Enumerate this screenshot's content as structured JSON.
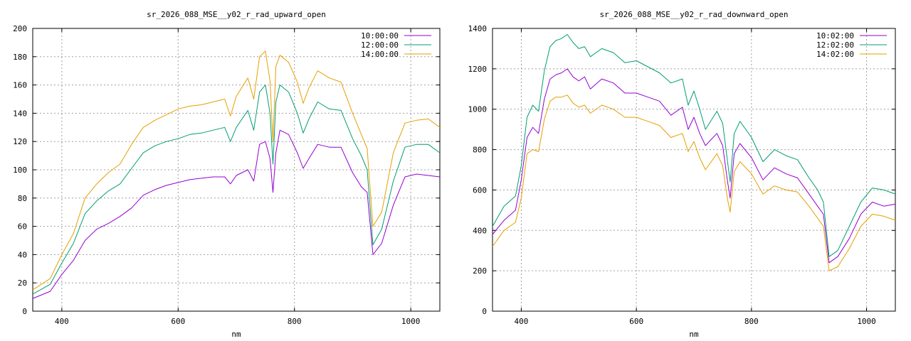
{
  "chart_data": [
    {
      "type": "line",
      "title": "sr_2026_088_MSE__y02_r_rad_upward_open",
      "xlabel": "nm",
      "ylabel": "",
      "xlim": [
        350,
        1050
      ],
      "ylim": [
        0,
        200
      ],
      "xticks": [
        400,
        600,
        800,
        1000
      ],
      "yticks": [
        0,
        20,
        40,
        60,
        80,
        100,
        120,
        140,
        160,
        180,
        200
      ],
      "grid": true,
      "legend_position": "top-right",
      "x": [
        350,
        380,
        400,
        420,
        440,
        460,
        480,
        500,
        520,
        540,
        560,
        580,
        600,
        620,
        640,
        660,
        680,
        690,
        700,
        720,
        730,
        740,
        750,
        758,
        763,
        768,
        775,
        790,
        805,
        815,
        825,
        840,
        860,
        880,
        900,
        915,
        925,
        935,
        950,
        970,
        990,
        1010,
        1030,
        1050
      ],
      "series": [
        {
          "name": "10:00:00",
          "color": "#9400d3",
          "values": [
            9,
            14,
            26,
            36,
            50,
            58,
            62,
            67,
            73,
            82,
            86,
            89,
            91,
            93,
            94,
            95,
            95,
            90,
            96,
            100,
            92,
            118,
            120,
            108,
            84,
            112,
            128,
            125,
            112,
            101,
            108,
            118,
            116,
            116,
            98,
            88,
            84,
            40,
            48,
            75,
            95,
            97,
            96,
            95
          ]
        },
        {
          "name": "12:00:00",
          "color": "#009e73",
          "values": [
            12,
            19,
            34,
            48,
            69,
            78,
            85,
            90,
            101,
            112,
            117,
            120,
            122,
            125,
            126,
            128,
            130,
            120,
            130,
            142,
            128,
            155,
            160,
            140,
            104,
            148,
            160,
            155,
            140,
            126,
            136,
            148,
            143,
            142,
            122,
            110,
            100,
            47,
            58,
            92,
            116,
            118,
            118,
            112
          ]
        },
        {
          "name": "14:00:00",
          "color": "#56b4e9",
          "values": [
            15,
            23,
            40,
            55,
            80,
            90,
            98,
            104,
            118,
            130,
            135,
            139,
            143,
            145,
            146,
            148,
            150,
            138,
            152,
            165,
            150,
            180,
            184,
            163,
            120,
            173,
            181,
            176,
            162,
            147,
            158,
            170,
            165,
            162,
            140,
            125,
            115,
            60,
            70,
            112,
            133,
            135,
            136,
            130
          ]
        }
      ]
    },
    {
      "type": "line",
      "title": "sr_2026_088_MSE__y02_r_rad_downward_open",
      "xlabel": "nm",
      "ylabel": "",
      "xlim": [
        350,
        1050
      ],
      "ylim": [
        0,
        1400
      ],
      "xticks": [
        400,
        600,
        800,
        1000
      ],
      "yticks": [
        0,
        200,
        400,
        600,
        800,
        1000,
        1200,
        1400
      ],
      "grid": true,
      "legend_position": "top-right",
      "x": [
        350,
        370,
        390,
        400,
        410,
        420,
        430,
        440,
        450,
        460,
        470,
        480,
        490,
        500,
        510,
        520,
        540,
        560,
        580,
        600,
        620,
        640,
        660,
        680,
        690,
        700,
        710,
        720,
        740,
        750,
        758,
        763,
        770,
        780,
        800,
        820,
        840,
        860,
        880,
        900,
        915,
        925,
        935,
        950,
        970,
        990,
        1010,
        1030,
        1050
      ],
      "series": [
        {
          "name": "10:02:00",
          "color": "#9400d3",
          "values": [
            380,
            450,
            500,
            650,
            860,
            910,
            880,
            1050,
            1150,
            1170,
            1180,
            1200,
            1160,
            1140,
            1160,
            1100,
            1150,
            1130,
            1080,
            1080,
            1060,
            1040,
            970,
            1010,
            900,
            960,
            880,
            820,
            880,
            820,
            650,
            560,
            780,
            830,
            760,
            650,
            710,
            680,
            660,
            580,
            520,
            480,
            240,
            270,
            360,
            480,
            540,
            520,
            530
          ]
        },
        {
          "name": "12:02:00",
          "color": "#009e73",
          "values": [
            420,
            520,
            570,
            720,
            960,
            1020,
            990,
            1190,
            1310,
            1340,
            1350,
            1370,
            1330,
            1300,
            1310,
            1260,
            1300,
            1280,
            1230,
            1240,
            1210,
            1180,
            1130,
            1150,
            1020,
            1090,
            1000,
            900,
            990,
            930,
            750,
            640,
            880,
            940,
            860,
            740,
            800,
            770,
            750,
            660,
            600,
            540,
            270,
            300,
            420,
            540,
            610,
            600,
            580
          ]
        },
        {
          "name": "14:02:00",
          "color": "#56b4e9",
          "values": [
            320,
            400,
            440,
            560,
            780,
            800,
            790,
            950,
            1040,
            1060,
            1060,
            1070,
            1030,
            1010,
            1020,
            980,
            1020,
            1000,
            960,
            960,
            940,
            920,
            860,
            880,
            790,
            840,
            760,
            700,
            780,
            720,
            560,
            490,
            690,
            740,
            680,
            580,
            620,
            600,
            590,
            520,
            460,
            420,
            200,
            220,
            310,
            420,
            480,
            470,
            450
          ]
        }
      ]
    }
  ]
}
